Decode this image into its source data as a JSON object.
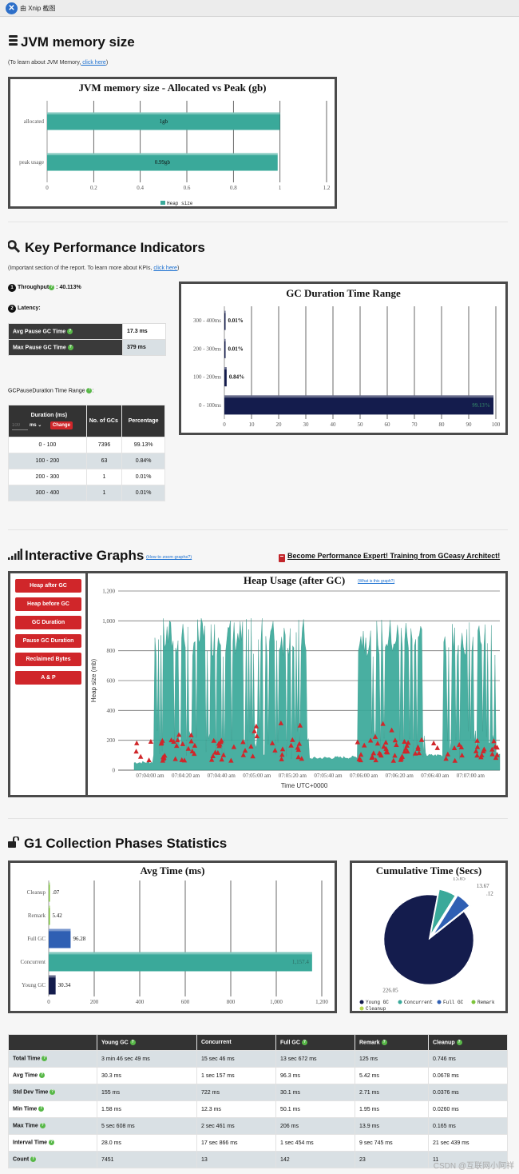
{
  "app": {
    "title": "由 Xnip 截图"
  },
  "jvm": {
    "title": "JVM memory size",
    "note_prefix": "(To learn about JVM Memory,",
    "note_link": " click here",
    "note_suffix": ")",
    "chart_title": "JVM memory size - Allocated vs Peak (gb)"
  },
  "kpi": {
    "title": "Key Performance Indicators",
    "note_prefix": "(Important section of the report. To learn more about KPIs,",
    "note_link": "click here",
    "note_suffix": ")",
    "throughput_num": "1",
    "throughput_label": "Throughput",
    "throughput_value": ": 40.113%",
    "latency_num": "2",
    "latency_label": "Latency:",
    "rows": [
      {
        "label": "Avg Pause GC Time",
        "value": "17.3 ms"
      },
      {
        "label": "Max Pause GC Time",
        "value": "379 ms"
      }
    ],
    "range_label": "GCPauseDuration Time Range",
    "range_colon": ":",
    "table": {
      "h_duration": "Duration (ms)",
      "h_input_placeholder": "100",
      "h_unit": "ms",
      "h_change": "Change",
      "h_count": "No. of GCs",
      "h_pct": "Percentage",
      "rows": [
        {
          "range": "0 - 100",
          "count": "7396",
          "pct": "99.13%"
        },
        {
          "range": "100 - 200",
          "count": "63",
          "pct": "0.84%"
        },
        {
          "range": "200 - 300",
          "count": "1",
          "pct": "0.01%"
        },
        {
          "range": "300 - 400",
          "count": "1",
          "pct": "0.01%"
        }
      ]
    },
    "chart_title": "GC Duration Time Range"
  },
  "graphs": {
    "title": "Interactive Graphs",
    "zoom_link": "(How to zoom graphs?)",
    "training": "Become Performance Expert! Training from GCeasy Architect!",
    "buttons": [
      "Heap after GC",
      "Heap before GC",
      "GC Duration",
      "Pause GC Duration",
      "Reclaimed Bytes",
      "A & P"
    ],
    "chart_title": "Heap Usage (after GC)",
    "what_link": "(What is this graph?)"
  },
  "g1": {
    "title": "G1 Collection Phases Statistics",
    "avg_title": "Avg Time (ms)",
    "cum_title": "Cumulative Time (Secs)"
  },
  "stats": {
    "headers": [
      "",
      "Young GC",
      "Concurrent",
      "Full GC",
      "Remark",
      "Cleanup"
    ],
    "rows": [
      {
        "label": "Total Time",
        "cells": [
          "3 min 46 sec 49 ms",
          "15 sec 46 ms",
          "13 sec 672 ms",
          "125 ms",
          "0.746 ms"
        ]
      },
      {
        "label": "Avg Time",
        "cells": [
          "30.3 ms",
          "1 sec 157 ms",
          "96.3 ms",
          "5.42 ms",
          "0.0678 ms"
        ]
      },
      {
        "label": "Std Dev Time",
        "cells": [
          "155 ms",
          "722 ms",
          "30.1 ms",
          "2.71 ms",
          "0.0376 ms"
        ]
      },
      {
        "label": "Min Time",
        "cells": [
          "1.58 ms",
          "12.3 ms",
          "50.1 ms",
          "1.95 ms",
          "0.0260 ms"
        ]
      },
      {
        "label": "Max Time",
        "cells": [
          "5 sec 608 ms",
          "2 sec 461 ms",
          "206 ms",
          "13.9 ms",
          "0.165 ms"
        ]
      },
      {
        "label": "Interval Time",
        "cells": [
          "28.0 ms",
          "17 sec 866 ms",
          "1 sec 454 ms",
          "9 sec 745 ms",
          "21 sec 439 ms"
        ]
      },
      {
        "label": "Count",
        "cells": [
          "7451",
          "13",
          "142",
          "23",
          "11"
        ]
      }
    ]
  },
  "watermark": "CSDN @互联网小阿祥",
  "colors": {
    "teal": "#3aa99a",
    "navy": "#141c4d",
    "red": "#d0262a",
    "blue": "#2f5fb3",
    "green": "#7cc43a"
  },
  "chart_data": [
    {
      "type": "bar",
      "title": "JVM memory size - Allocated vs Peak (gb)",
      "categories": [
        "allocated",
        "peak usage"
      ],
      "values": [
        1,
        0.99
      ],
      "data_labels": [
        "1gb",
        "0.99gb"
      ],
      "xlim": [
        0,
        1.2
      ],
      "xticks": [
        "0",
        "0.2",
        "0.4",
        "0.6",
        "0.8",
        "1",
        "1.2"
      ],
      "legend": "Heap size",
      "grid": true
    },
    {
      "type": "bar",
      "title": "GC Duration Time Range",
      "categories": [
        "300 - 400ms",
        "200 - 300ms",
        "100 - 200ms",
        "0 - 100ms"
      ],
      "values": [
        0.01,
        0.01,
        0.84,
        99.13
      ],
      "data_labels": [
        "0.01%",
        "0.01%",
        "0.84%",
        "99.13%"
      ],
      "xlim": [
        0,
        100
      ],
      "xticks": [
        "0",
        "10",
        "20",
        "30",
        "40",
        "50",
        "60",
        "70",
        "80",
        "90",
        "100"
      ]
    },
    {
      "type": "area",
      "title": "Heap Usage (after GC)",
      "ylabel": "Heap size (mb)",
      "xlabel": "Time UTC+0000",
      "ylim": [
        0,
        1200
      ],
      "yticks": [
        "0",
        "200",
        "400",
        "600",
        "800",
        "1,000",
        "1,200"
      ],
      "xticks": [
        "07:04:00 am",
        "07:04:20 am",
        "07:04:40 am",
        "07:05:00 am",
        "07:05:20 am",
        "07:05:40 am",
        "07:06:00 am",
        "07:06:20 am",
        "07:06:40 am",
        "07:07:00 am"
      ]
    },
    {
      "type": "bar",
      "title": "Avg Time (ms)",
      "categories": [
        "Cleanup",
        "Remark",
        "Full GC",
        "Concurrent",
        "Young GC"
      ],
      "values": [
        0.07,
        5.42,
        96.28,
        1157.4,
        30.34
      ],
      "data_labels": [
        ".07",
        "5.42",
        "96.28",
        "1,157.4",
        "30.34"
      ],
      "xlim": [
        0,
        1200
      ],
      "xticks": [
        "0",
        "200",
        "400",
        "600",
        "800",
        "1,000",
        "1,200"
      ]
    },
    {
      "type": "pie",
      "title": "Cumulative Time (Secs)",
      "categories": [
        "Young GC",
        "Concurrent",
        "Full GC",
        "Remark",
        "Cleanup"
      ],
      "values": [
        226.05,
        15.05,
        13.67,
        0.12,
        0.001
      ],
      "data_labels": [
        "226.05",
        "15.05",
        "13.67",
        ".12",
        ""
      ]
    }
  ]
}
